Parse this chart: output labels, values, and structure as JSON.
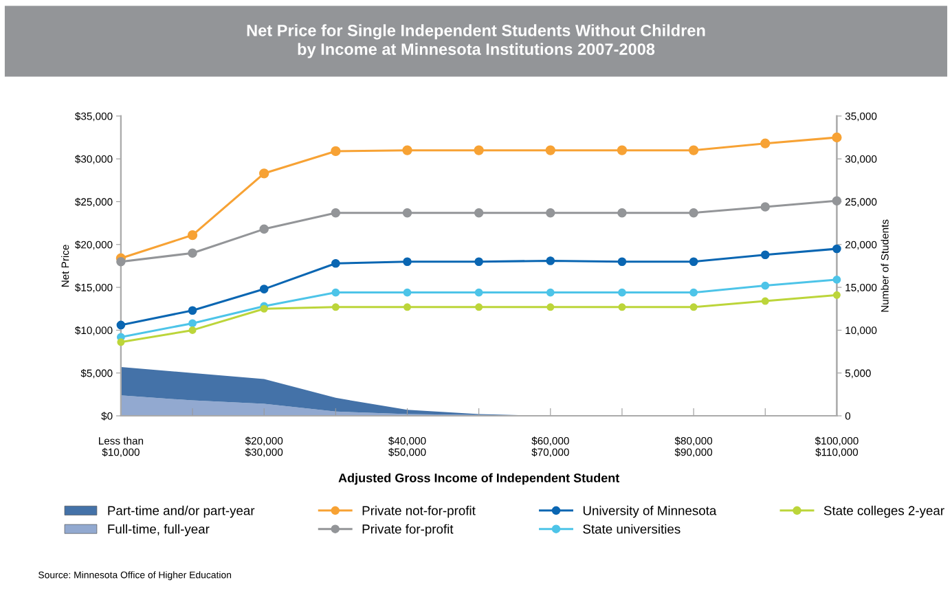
{
  "chart_data": {
    "type": "line",
    "title": "Net Price for Single Independent Students Without Children\nby Income at Minnesota Institutions 2007-2008",
    "xlabel": "Adjusted Gross Income of Independent Student",
    "ylabel": "Net Price",
    "y2label": "Number of Students",
    "categories": [
      "Less than\n$10,000",
      null,
      "$20,000\n$30,000",
      null,
      "$40,000\n$50,000",
      null,
      "$60,000\n$70,000",
      null,
      "$80,000\n$90,000",
      null,
      "$100,000\n$110,000"
    ],
    "stacked": true,
    "series": [
      {
        "name": "Full-time, full-year",
        "type": "area",
        "axis": "y2",
        "color": "#92a9d0",
        "marker": "none",
        "values": [
          2400,
          1800,
          1400,
          500,
          200,
          100,
          0,
          0,
          0,
          0,
          0
        ]
      },
      {
        "name": "Part-time and/or part-year",
        "type": "area",
        "axis": "y2",
        "color": "#4472a8",
        "marker": "none",
        "values": [
          3300,
          3200,
          2900,
          1600,
          500,
          100,
          0,
          0,
          0,
          0,
          0
        ]
      },
      {
        "name": "Private not-for-profit",
        "color": "#f7a234",
        "values": [
          18400,
          21100,
          28300,
          30900,
          31000,
          31000,
          31000,
          31000,
          31000,
          31800,
          32500
        ]
      },
      {
        "name": "Private for-profit",
        "color": "#939598",
        "values": [
          18000,
          19000,
          21800,
          23700,
          23700,
          23700,
          23700,
          23700,
          23700,
          24400,
          25100
        ]
      },
      {
        "name": "University of Minnesota",
        "color": "#0a66b2",
        "values": [
          10600,
          12300,
          14800,
          17800,
          18000,
          18000,
          18100,
          18000,
          18000,
          18800,
          19500
        ]
      },
      {
        "name": "State universities",
        "color": "#4dc4e8",
        "values": [
          9200,
          10800,
          12800,
          14400,
          14400,
          14400,
          14400,
          14400,
          14400,
          15200,
          15900
        ]
      },
      {
        "name": "State colleges 2-year",
        "color": "#bcd53a",
        "values": [
          8600,
          10000,
          12500,
          12700,
          12700,
          12700,
          12700,
          12700,
          12700,
          13400,
          14100
        ]
      }
    ],
    "ylim": [
      0,
      35000
    ],
    "yticks": [
      {
        "value": 0,
        "label": "$0"
      },
      {
        "value": 5000,
        "label": "$5,000"
      },
      {
        "value": 10000,
        "label": "$10,000"
      },
      {
        "value": 15000,
        "label": "$15,000"
      },
      {
        "value": 20000,
        "label": "$20,000"
      },
      {
        "value": 25000,
        "label": "$25,000"
      },
      {
        "value": 30000,
        "label": "$30,000"
      },
      {
        "value": 35000,
        "label": "$35,000"
      }
    ],
    "y2lim": [
      0,
      35000
    ],
    "y2ticks": [
      0,
      {
        "value": 5000,
        "label": "5,000"
      },
      {
        "value": 10000,
        "label": "10,000"
      },
      {
        "value": 15000,
        "label": "15,000"
      },
      {
        "value": 20000,
        "label": "20,000"
      },
      {
        "value": 25000,
        "label": "25,000"
      },
      {
        "value": 30000,
        "label": "30,000"
      },
      {
        "value": 35000,
        "label": "35,000"
      }
    ],
    "marker": "circle",
    "line_style": "solid",
    "grid": false,
    "legend": "bottom",
    "annotations": [
      "Source: Minnesota Office of Higher Education"
    ]
  }
}
